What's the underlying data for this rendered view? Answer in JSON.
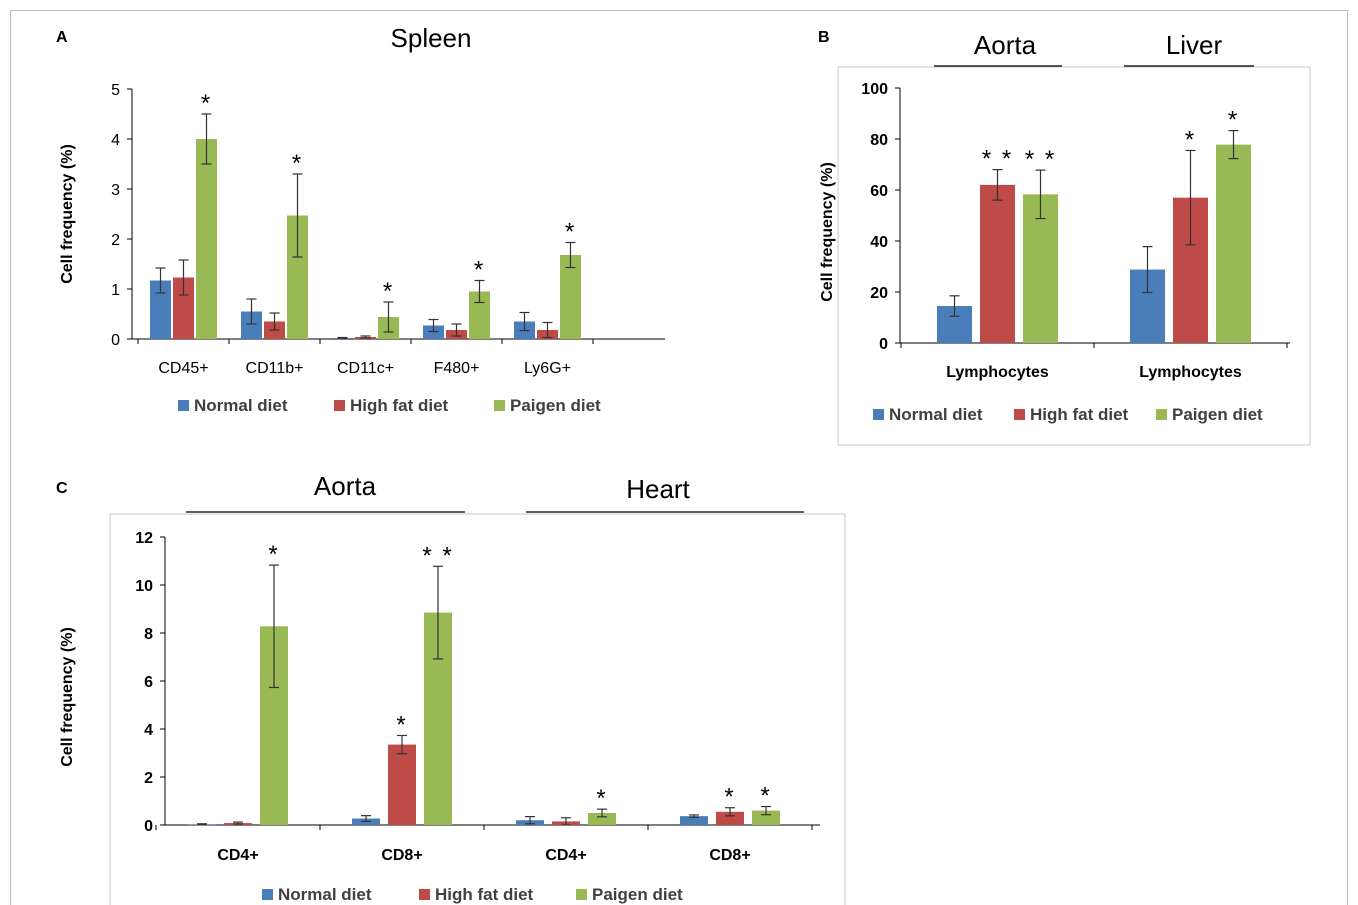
{
  "colors": {
    "normal": "#4a7ebb",
    "high_fat": "#be4b48",
    "paigen": "#98b954"
  },
  "chart_data": [
    {
      "panel": "A",
      "type": "bar",
      "title": "Spleen",
      "xlabel": "",
      "ylabel": "Cell frequency (%)",
      "ylim": [
        0,
        5
      ],
      "yticks": [
        0,
        1,
        2,
        3,
        4,
        5
      ],
      "grid": false,
      "legend_position": "bottom",
      "categories": [
        "CD45+",
        "CD11b+",
        "CD11c+",
        "F480+",
        "Ly6G+"
      ],
      "series": [
        {
          "name": "Normal diet",
          "values": [
            1.17,
            0.55,
            0.02,
            0.27,
            0.35
          ],
          "errors": [
            0.25,
            0.25,
            0.01,
            0.12,
            0.18
          ],
          "annotations": [
            "",
            "",
            "",
            "",
            ""
          ]
        },
        {
          "name": "High fat diet",
          "values": [
            1.23,
            0.35,
            0.04,
            0.18,
            0.18
          ],
          "errors": [
            0.35,
            0.17,
            0.02,
            0.12,
            0.15
          ],
          "annotations": [
            "",
            "",
            "",
            "",
            ""
          ]
        },
        {
          "name": "Paigen diet",
          "values": [
            4.0,
            2.47,
            0.44,
            0.95,
            1.68
          ],
          "errors": [
            0.5,
            0.83,
            0.3,
            0.22,
            0.25
          ],
          "annotations": [
            "*",
            "*",
            "*",
            "*",
            "*"
          ]
        }
      ]
    },
    {
      "panel": "B",
      "type": "bar",
      "title": "",
      "xlabel": "",
      "ylabel": "Cell frequency (%)",
      "ylim": [
        0,
        100
      ],
      "yticks": [
        0,
        20,
        40,
        60,
        80,
        100
      ],
      "grid": false,
      "legend_position": "bottom",
      "groups": [
        "Aorta",
        "Liver"
      ],
      "categories": [
        "Lymphocytes",
        "Lymphocytes"
      ],
      "series": [
        {
          "name": "Normal diet",
          "values": [
            14.5,
            28.8
          ],
          "errors": [
            4.0,
            9.0
          ],
          "annotations": [
            "",
            ""
          ]
        },
        {
          "name": "High fat diet",
          "values": [
            62.0,
            57.0
          ],
          "errors": [
            6.0,
            18.5
          ],
          "annotations": [
            "**",
            "*"
          ]
        },
        {
          "name": "Paigen diet",
          "values": [
            58.3,
            77.8
          ],
          "errors": [
            9.5,
            5.5
          ],
          "annotations": [
            "**",
            "*"
          ]
        }
      ]
    },
    {
      "panel": "C",
      "type": "bar",
      "title": "",
      "xlabel": "",
      "ylabel": "Cell frequency (%)",
      "ylim": [
        0,
        12
      ],
      "yticks": [
        0,
        2,
        4,
        6,
        8,
        10,
        12
      ],
      "grid": false,
      "legend_position": "bottom",
      "groups": [
        "Aorta",
        "Heart"
      ],
      "categories": [
        "CD4+",
        "CD8+",
        "CD4+",
        "CD8+"
      ],
      "series": [
        {
          "name": "Normal diet",
          "values": [
            0.03,
            0.27,
            0.2,
            0.37
          ],
          "errors": [
            0.02,
            0.12,
            0.15,
            0.05
          ],
          "annotations": [
            "",
            "",
            "",
            ""
          ]
        },
        {
          "name": "High fat diet",
          "values": [
            0.08,
            3.35,
            0.15,
            0.55
          ],
          "errors": [
            0.04,
            0.38,
            0.15,
            0.17
          ],
          "annotations": [
            "",
            "*",
            "",
            "*"
          ]
        },
        {
          "name": "Paigen diet",
          "values": [
            8.28,
            8.85,
            0.5,
            0.6
          ],
          "errors": [
            2.55,
            1.93,
            0.16,
            0.17
          ],
          "annotations": [
            "*",
            "**",
            "*",
            "*"
          ]
        }
      ]
    }
  ]
}
